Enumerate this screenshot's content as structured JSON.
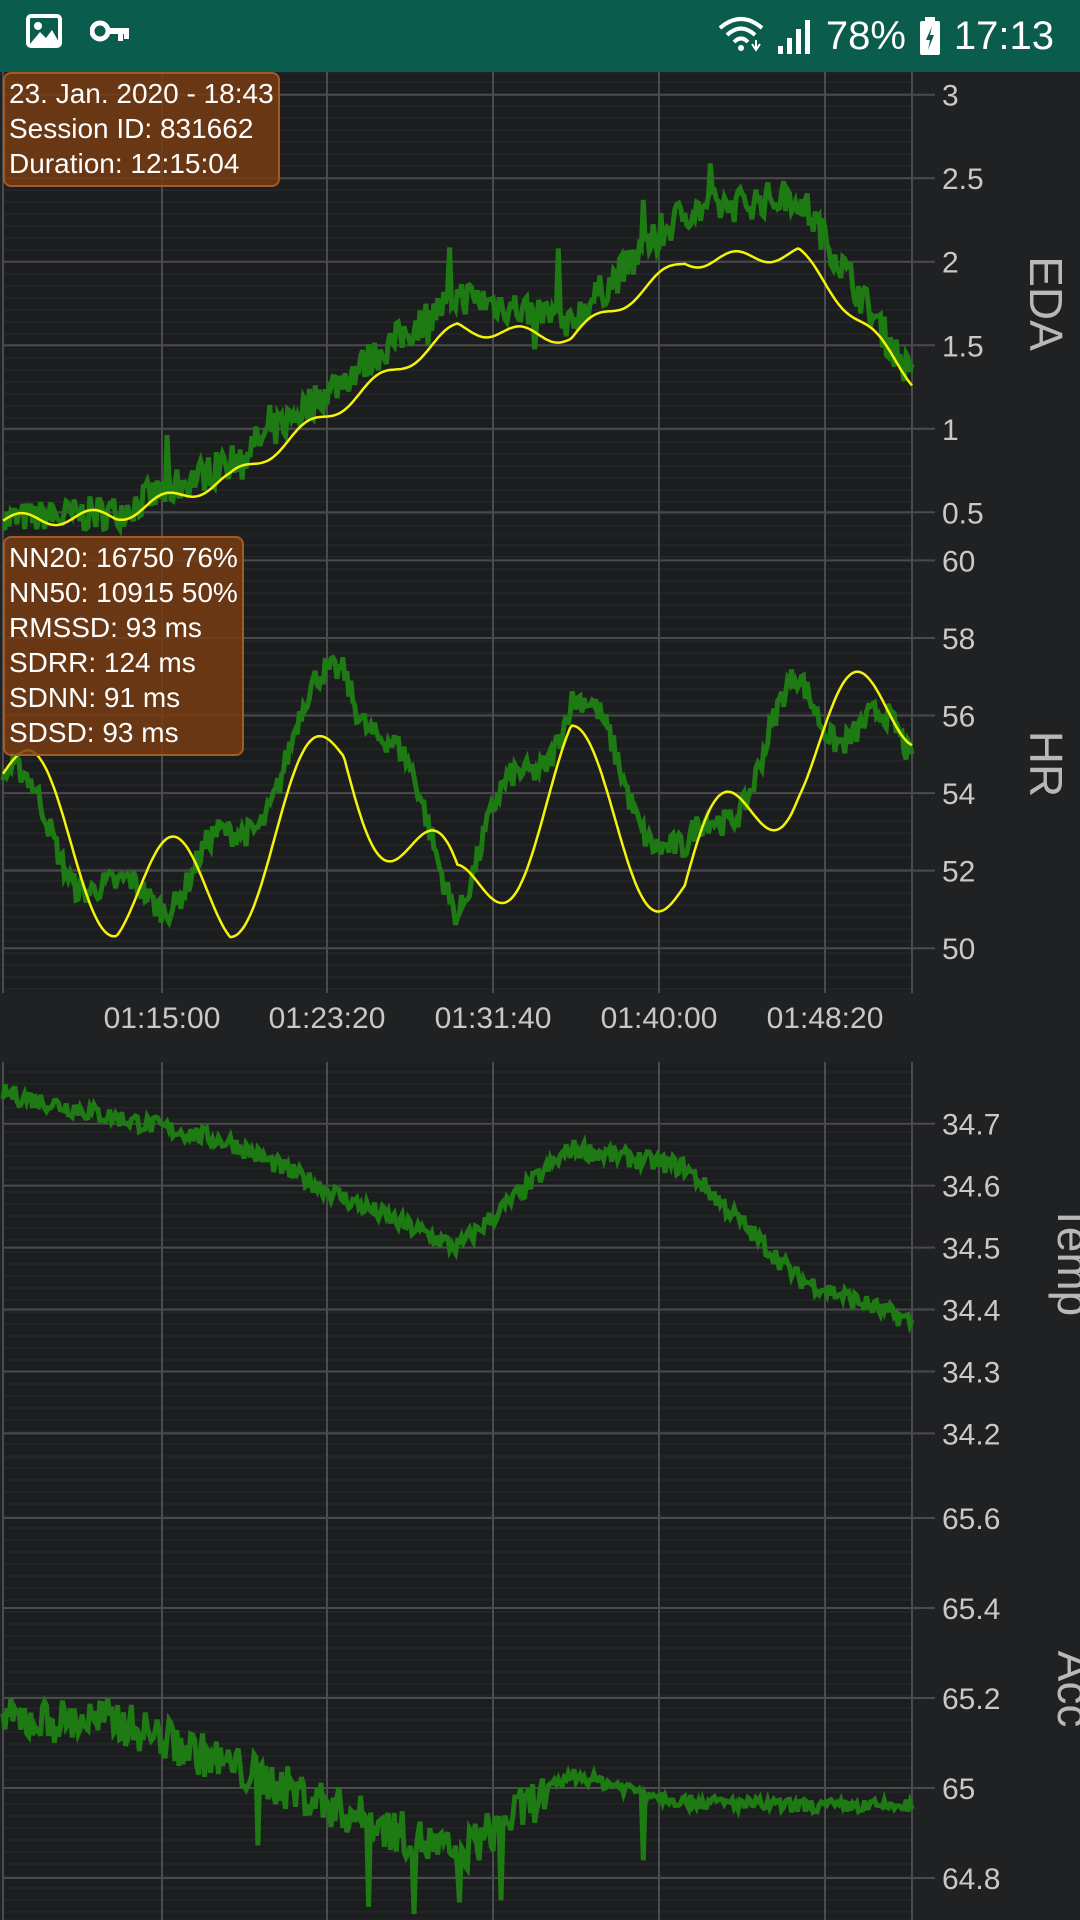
{
  "status_bar": {
    "battery_percent": "78%",
    "time": "17:13",
    "icons": [
      "image-icon",
      "key-icon",
      "wifi-icon",
      "signal-icon",
      "battery-icon"
    ]
  },
  "session_info": {
    "date": "23. Jan. 2020 - 18:43",
    "session_id": "Session ID: 831662",
    "duration": "Duration: 12:15:04"
  },
  "hrv_info": {
    "nn20": "NN20: 16750 76%",
    "nn50": "NN50: 10915 50%",
    "rmssd": "RMSSD: 93 ms",
    "sdrr": "SDRR: 124 ms",
    "sdnn": "SDNN: 91 ms",
    "sdsd": "SDSD: 93 ms"
  },
  "colors": {
    "raw_line": "#1e7a12",
    "smooth_line": "#f4f40a",
    "grid": "#4a4b4d",
    "panel_bg": "#1c1d1e"
  },
  "chart_data": [
    {
      "type": "line",
      "ylabel": "EDA",
      "yticks": [
        "3",
        "2.5",
        "2",
        "1.5",
        "1",
        "0.5"
      ],
      "ylim": [
        0.4,
        3.1
      ],
      "x": [
        "01:10:00",
        "01:15:00",
        "01:20:00",
        "01:25:00",
        "01:30:00",
        "01:35:00",
        "01:40:00",
        "01:45:00",
        "01:50:00"
      ],
      "series": [
        {
          "values": [
            0.45,
            0.5,
            0.8,
            1.3,
            1.8,
            1.65,
            2.3,
            2.4,
            1.3
          ]
        },
        {
          "values": [
            0.45,
            0.48,
            0.7,
            1.15,
            1.6,
            1.55,
            2.0,
            2.05,
            1.3
          ]
        }
      ]
    },
    {
      "type": "line",
      "ylabel": "HR",
      "yticks": [
        "60",
        "58",
        "56",
        "54",
        "52",
        "50"
      ],
      "ylim": [
        49.0,
        60.5
      ],
      "x": [
        "01:10:00",
        "01:15:00",
        "01:20:00",
        "01:25:00",
        "01:30:00",
        "01:35:00",
        "01:40:00",
        "01:45:00",
        "01:50:00"
      ],
      "series": [
        {
          "values": [
            54.5,
            51.0,
            52.5,
            57.5,
            51.5,
            56.5,
            52.0,
            56.5,
            55.0
          ]
        },
        {
          "values": [
            54.5,
            51.5,
            51.5,
            55.0,
            51.0,
            54.5,
            51.5,
            55.0,
            56.5
          ]
        }
      ]
    },
    {
      "type": "line",
      "ylabel": "Temp",
      "yticks": [
        "34.7",
        "34.6",
        "34.5",
        "34.4",
        "34.3",
        "34.2"
      ],
      "ylim": [
        34.17,
        34.79
      ],
      "x": [
        "01:10:00",
        "01:15:00",
        "01:20:00",
        "01:25:00",
        "01:30:00",
        "01:35:00",
        "01:40:00",
        "01:45:00",
        "01:50:00"
      ],
      "series": [
        {
          "values": [
            34.75,
            34.71,
            34.67,
            34.58,
            34.5,
            34.66,
            34.63,
            34.45,
            34.38
          ]
        }
      ]
    },
    {
      "type": "line",
      "ylabel": "Acc",
      "yticks": [
        "65.6",
        "65.4",
        "65.2",
        "65",
        "64.8"
      ],
      "ylim": [
        64.72,
        65.72
      ],
      "x": [
        "01:10:00",
        "01:15:00",
        "01:20:00",
        "01:25:00",
        "01:30:00",
        "01:35:00",
        "01:40:00",
        "01:45:00",
        "01:50:00"
      ],
      "series": [
        {
          "values": [
            65.15,
            65.15,
            65.05,
            64.95,
            64.85,
            65.03,
            64.97,
            64.96,
            64.96
          ]
        }
      ]
    }
  ],
  "x_axis": {
    "ticks": [
      "01:15:00",
      "01:23:20",
      "01:31:40",
      "01:40:00",
      "01:48:20"
    ]
  }
}
